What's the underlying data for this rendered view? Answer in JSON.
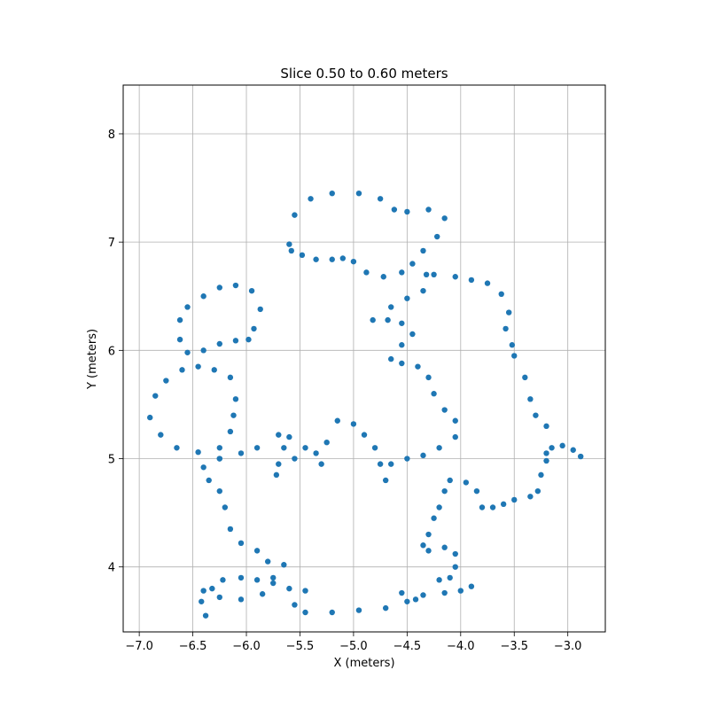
{
  "chart_data": {
    "type": "scatter",
    "title": "Slice 0.50 to 0.60 meters",
    "xlabel": "X (meters)",
    "ylabel": "Y (meters)",
    "xlim": [
      -7.15,
      -2.65
    ],
    "ylim": [
      3.4,
      8.45
    ],
    "grid": true,
    "marker_color": "#1f77b4",
    "xticks": [
      -7.0,
      -6.5,
      -6.0,
      -5.5,
      -5.0,
      -4.5,
      -4.0,
      -3.5,
      -3.0
    ],
    "xtick_labels": [
      "−7.0",
      "−6.5",
      "−6.0",
      "−5.5",
      "−5.0",
      "−4.5",
      "−4.0",
      "−3.5",
      "−3.0"
    ],
    "yticks": [
      4,
      5,
      6,
      7,
      8
    ],
    "ytick_labels": [
      "4",
      "5",
      "6",
      "7",
      "8"
    ],
    "series": [
      {
        "values": [
          [
            -5.6,
            6.98
          ],
          [
            -5.55,
            7.25
          ],
          [
            -5.4,
            7.4
          ],
          [
            -5.2,
            7.45
          ],
          [
            -4.95,
            7.45
          ],
          [
            -4.75,
            7.4
          ],
          [
            -4.62,
            7.3
          ],
          [
            -4.5,
            7.28
          ],
          [
            -4.3,
            7.3
          ],
          [
            -4.15,
            7.22
          ],
          [
            -4.22,
            7.05
          ],
          [
            -4.35,
            6.92
          ],
          [
            -4.45,
            6.8
          ],
          [
            -4.55,
            6.72
          ],
          [
            -4.72,
            6.68
          ],
          [
            -4.88,
            6.72
          ],
          [
            -5.0,
            6.82
          ],
          [
            -5.1,
            6.85
          ],
          [
            -5.2,
            6.84
          ],
          [
            -5.35,
            6.84
          ],
          [
            -5.48,
            6.88
          ],
          [
            -5.58,
            6.92
          ]
        ]
      },
      {
        "values": [
          [
            -6.62,
            6.28
          ],
          [
            -6.55,
            6.4
          ],
          [
            -6.4,
            6.5
          ],
          [
            -6.25,
            6.58
          ],
          [
            -6.1,
            6.6
          ],
          [
            -5.95,
            6.55
          ],
          [
            -5.87,
            6.38
          ],
          [
            -5.93,
            6.2
          ],
          [
            -5.98,
            6.1
          ],
          [
            -6.1,
            6.09
          ],
          [
            -6.25,
            6.06
          ],
          [
            -6.4,
            6.0
          ],
          [
            -6.55,
            5.98
          ],
          [
            -6.62,
            6.1
          ]
        ]
      },
      {
        "values": [
          [
            -6.45,
            5.85
          ],
          [
            -6.3,
            5.82
          ],
          [
            -6.15,
            5.75
          ],
          [
            -6.1,
            5.55
          ],
          [
            -6.12,
            5.4
          ],
          [
            -6.15,
            5.25
          ],
          [
            -6.25,
            5.1
          ],
          [
            -6.45,
            5.06
          ],
          [
            -6.65,
            5.1
          ],
          [
            -6.8,
            5.22
          ],
          [
            -6.9,
            5.38
          ],
          [
            -6.85,
            5.58
          ],
          [
            -6.75,
            5.72
          ],
          [
            -6.6,
            5.82
          ]
        ]
      },
      {
        "values": [
          [
            -6.25,
            5.0
          ],
          [
            -6.4,
            4.92
          ],
          [
            -6.35,
            4.8
          ],
          [
            -6.25,
            4.7
          ],
          [
            -6.2,
            4.55
          ],
          [
            -6.15,
            4.35
          ],
          [
            -6.05,
            4.22
          ],
          [
            -5.9,
            4.15
          ],
          [
            -5.8,
            4.05
          ],
          [
            -5.65,
            4.02
          ],
          [
            -5.75,
            3.9
          ],
          [
            -5.85,
            3.75
          ],
          [
            -6.05,
            3.7
          ],
          [
            -6.25,
            3.72
          ],
          [
            -6.32,
            3.8
          ],
          [
            -6.22,
            3.88
          ],
          [
            -6.05,
            3.9
          ],
          [
            -5.9,
            3.88
          ],
          [
            -5.75,
            3.85
          ],
          [
            -5.6,
            3.8
          ],
          [
            -5.55,
            3.65
          ],
          [
            -5.45,
            3.58
          ],
          [
            -5.2,
            3.58
          ],
          [
            -4.95,
            3.6
          ],
          [
            -4.7,
            3.62
          ],
          [
            -4.5,
            3.68
          ],
          [
            -4.35,
            3.74
          ],
          [
            -4.15,
            3.76
          ],
          [
            -4.0,
            3.78
          ],
          [
            -3.9,
            3.82
          ]
        ]
      },
      {
        "values": [
          [
            -6.4,
            3.78
          ],
          [
            -6.42,
            3.68
          ],
          [
            -6.38,
            3.55
          ],
          [
            -5.45,
            3.78
          ],
          [
            -4.55,
            3.76
          ],
          [
            -4.42,
            3.7
          ]
        ]
      },
      {
        "values": [
          [
            -6.25,
            5.0
          ],
          [
            -6.05,
            5.05
          ],
          [
            -5.9,
            5.1
          ],
          [
            -5.7,
            5.22
          ],
          [
            -5.6,
            5.2
          ],
          [
            -5.65,
            5.1
          ],
          [
            -5.7,
            4.95
          ],
          [
            -5.72,
            4.85
          ],
          [
            -5.55,
            5.0
          ],
          [
            -5.45,
            5.1
          ],
          [
            -5.35,
            5.05
          ],
          [
            -5.3,
            4.95
          ],
          [
            -5.25,
            5.15
          ],
          [
            -5.15,
            5.35
          ],
          [
            -5.0,
            5.32
          ],
          [
            -4.9,
            5.22
          ],
          [
            -4.8,
            5.1
          ],
          [
            -4.75,
            4.95
          ],
          [
            -4.7,
            4.8
          ],
          [
            -4.65,
            4.95
          ],
          [
            -4.5,
            5.0
          ],
          [
            -4.35,
            5.03
          ],
          [
            -4.2,
            5.1
          ],
          [
            -4.05,
            5.2
          ],
          [
            -4.05,
            5.35
          ],
          [
            -4.15,
            5.45
          ],
          [
            -4.25,
            5.6
          ],
          [
            -4.3,
            5.75
          ],
          [
            -4.4,
            5.85
          ],
          [
            -4.55,
            5.88
          ],
          [
            -4.65,
            5.92
          ],
          [
            -4.55,
            6.05
          ],
          [
            -4.45,
            6.15
          ],
          [
            -4.55,
            6.25
          ],
          [
            -4.68,
            6.28
          ],
          [
            -4.82,
            6.28
          ],
          [
            -4.65,
            6.4
          ],
          [
            -4.5,
            6.48
          ],
          [
            -4.35,
            6.55
          ],
          [
            -4.32,
            6.7
          ],
          [
            -4.25,
            6.7
          ],
          [
            -4.05,
            6.68
          ],
          [
            -3.9,
            6.65
          ],
          [
            -3.75,
            6.62
          ],
          [
            -3.62,
            6.52
          ],
          [
            -3.55,
            6.35
          ],
          [
            -3.58,
            6.2
          ],
          [
            -3.52,
            6.05
          ],
          [
            -3.5,
            5.95
          ],
          [
            -3.4,
            5.75
          ],
          [
            -3.35,
            5.55
          ],
          [
            -3.3,
            5.4
          ],
          [
            -3.2,
            5.3
          ],
          [
            -3.15,
            5.1
          ],
          [
            -3.2,
            4.98
          ],
          [
            -3.25,
            4.85
          ],
          [
            -3.28,
            4.7
          ],
          [
            -3.35,
            4.65
          ],
          [
            -3.5,
            4.62
          ],
          [
            -3.6,
            4.58
          ],
          [
            -3.7,
            4.55
          ],
          [
            -3.8,
            4.55
          ],
          [
            -3.85,
            4.7
          ],
          [
            -3.95,
            4.78
          ],
          [
            -4.1,
            4.8
          ],
          [
            -4.15,
            4.7
          ],
          [
            -4.2,
            4.55
          ],
          [
            -4.25,
            4.45
          ],
          [
            -4.3,
            4.3
          ],
          [
            -4.35,
            4.2
          ],
          [
            -4.3,
            4.15
          ],
          [
            -4.15,
            4.18
          ],
          [
            -4.05,
            4.12
          ],
          [
            -4.05,
            4.0
          ],
          [
            -4.1,
            3.9
          ],
          [
            -4.2,
            3.88
          ]
        ]
      },
      {
        "values": [
          [
            -3.2,
            5.05
          ],
          [
            -3.05,
            5.12
          ],
          [
            -2.95,
            5.08
          ],
          [
            -2.88,
            5.02
          ]
        ]
      }
    ]
  }
}
